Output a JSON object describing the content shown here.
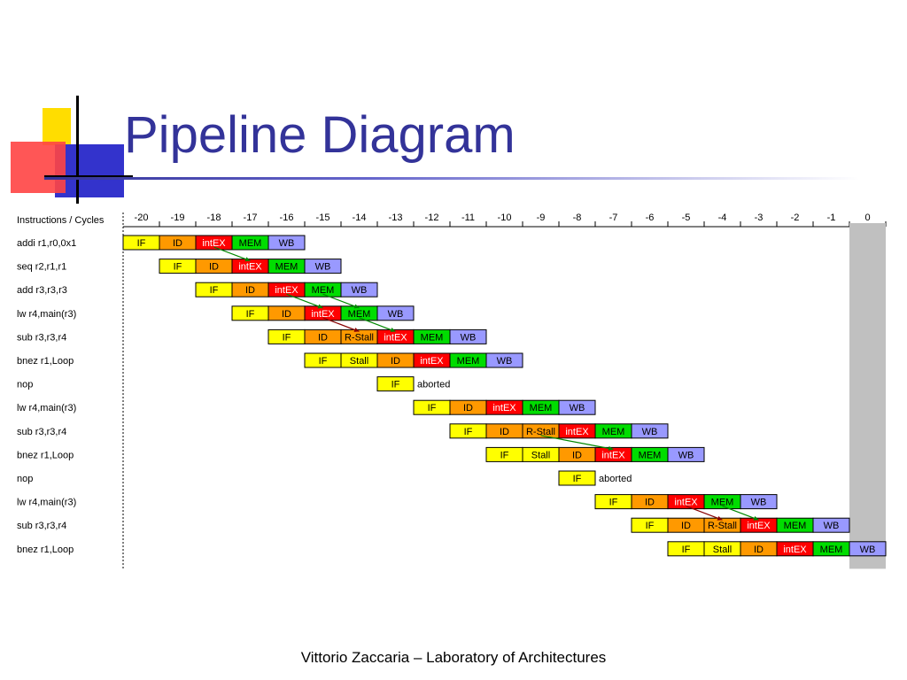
{
  "slide": {
    "title": "Pipeline Diagram",
    "footer": "Vittorio Zaccaria – Laboratory of Architectures"
  },
  "diagram": {
    "header_label": "Instructions / Cycles",
    "cycles": [
      "-20",
      "-19",
      "-18",
      "-17",
      "-16",
      "-15",
      "-14",
      "-13",
      "-12",
      "-11",
      "-10",
      "-9",
      "-8",
      "-7",
      "-6",
      "-5",
      "-4",
      "-3",
      "-2",
      "-1",
      "0"
    ],
    "stage_colors": {
      "IF": "#ffff00",
      "ID": "#ff9900",
      "intEX": "#ff0000",
      "MEM": "#00dd00",
      "WB": "#9999ff",
      "Stall": "#ffff00",
      "R-Stall": "#ff9900"
    },
    "instructions": [
      {
        "label": "addi r1,r0,0x1",
        "start": 0,
        "stages": [
          "IF",
          "ID",
          "intEX",
          "MEM",
          "WB"
        ]
      },
      {
        "label": "seq r2,r1,r1",
        "start": 1,
        "stages": [
          "IF",
          "ID",
          "intEX",
          "MEM",
          "WB"
        ]
      },
      {
        "label": "add r3,r3,r3",
        "start": 2,
        "stages": [
          "IF",
          "ID",
          "intEX",
          "MEM",
          "WB"
        ]
      },
      {
        "label": "lw r4,main(r3)",
        "start": 3,
        "stages": [
          "IF",
          "ID",
          "intEX",
          "MEM",
          "WB"
        ]
      },
      {
        "label": "sub r3,r3,r4",
        "start": 4,
        "stages": [
          "IF",
          "ID",
          "R-Stall",
          "intEX",
          "MEM",
          "WB"
        ]
      },
      {
        "label": "bnez r1,Loop",
        "start": 5,
        "stages": [
          "IF",
          "Stall",
          "ID",
          "intEX",
          "MEM",
          "WB"
        ]
      },
      {
        "label": "nop",
        "start": 7,
        "stages": [
          "IF"
        ],
        "note": "aborted"
      },
      {
        "label": "lw r4,main(r3)",
        "start": 8,
        "stages": [
          "IF",
          "ID",
          "intEX",
          "MEM",
          "WB"
        ]
      },
      {
        "label": "sub r3,r3,r4",
        "start": 9,
        "stages": [
          "IF",
          "ID",
          "R-Stall",
          "intEX",
          "MEM",
          "WB"
        ]
      },
      {
        "label": "bnez r1,Loop",
        "start": 10,
        "stages": [
          "IF",
          "Stall",
          "ID",
          "intEX",
          "MEM",
          "WB"
        ]
      },
      {
        "label": "nop",
        "start": 12,
        "stages": [
          "IF"
        ],
        "note": "aborted"
      },
      {
        "label": "lw r4,main(r3)",
        "start": 13,
        "stages": [
          "IF",
          "ID",
          "intEX",
          "MEM",
          "WB"
        ]
      },
      {
        "label": "sub r3,r3,r4",
        "start": 14,
        "stages": [
          "IF",
          "ID",
          "R-Stall",
          "intEX",
          "MEM",
          "WB"
        ]
      },
      {
        "label": "bnez r1,Loop",
        "start": 15,
        "stages": [
          "IF",
          "Stall",
          "ID",
          "intEX",
          "MEM",
          "WB"
        ]
      }
    ],
    "forwards": [
      {
        "from": [
          0,
          2
        ],
        "to": [
          1,
          2
        ],
        "color": "#008800"
      },
      {
        "from": [
          2,
          2
        ],
        "to": [
          3,
          2
        ],
        "color": "#008800"
      },
      {
        "from": [
          2,
          3
        ],
        "to": [
          3,
          3
        ],
        "color": "#008800"
      },
      {
        "from": [
          3,
          2
        ],
        "to": [
          4,
          2
        ],
        "color": "#880000"
      },
      {
        "from": [
          3,
          3
        ],
        "to": [
          4,
          3
        ],
        "color": "#008800"
      },
      {
        "from": [
          8,
          2
        ],
        "to": [
          9,
          3
        ],
        "color": "#008800"
      },
      {
        "from": [
          11,
          2
        ],
        "to": [
          12,
          2
        ],
        "color": "#880000"
      },
      {
        "from": [
          11,
          3
        ],
        "to": [
          12,
          3
        ],
        "color": "#008800"
      }
    ]
  }
}
